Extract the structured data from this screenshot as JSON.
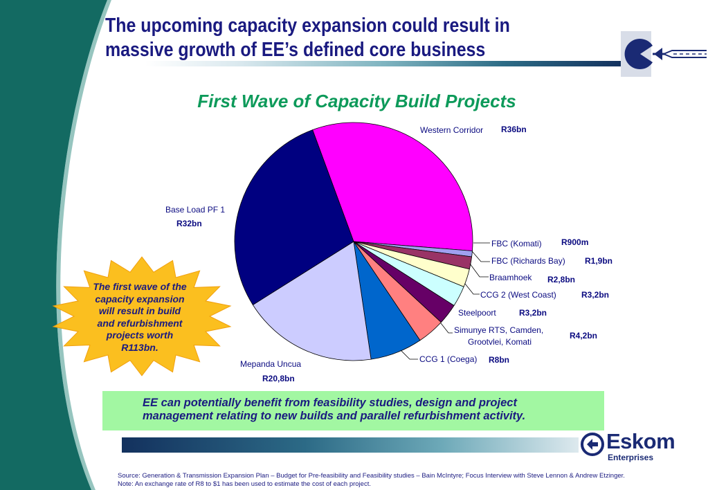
{
  "title_lines": [
    "The upcoming capacity expansion could result in",
    "massive growth of EE’s defined core business"
  ],
  "subtitle": "First Wave of Capacity Build Projects",
  "colors": {
    "title": "#1a1a80",
    "subtitle": "#0d9a5a",
    "green_box": "#a2f7a2",
    "burst": "#fbbf1f",
    "band": "#136a62"
  },
  "chart_data": {
    "type": "pie",
    "title": "First Wave of Capacity Build Projects",
    "unit": "R bn",
    "slices": [
      {
        "name": "Western Corridor",
        "value_label": "R36bn",
        "value": 36.0,
        "color": "#ff00ff"
      },
      {
        "name": "FBC (Komati)",
        "value_label": "R900m",
        "value": 0.9,
        "color": "#a0a0f0"
      },
      {
        "name": "FBC (Richards Bay)",
        "value_label": "R1,9bn",
        "value": 1.9,
        "color": "#993366"
      },
      {
        "name": "Braamhoek",
        "value_label": "R2,8bn",
        "value": 2.8,
        "color": "#ffffcc"
      },
      {
        "name": "CCG 2  (West Coast)",
        "value_label": "R3,2bn",
        "value": 3.2,
        "color": "#ccffff"
      },
      {
        "name": "Steelpoort",
        "value_label": "R3,2bn",
        "value": 3.2,
        "color": "#660066"
      },
      {
        "name": "Simunye RTS, Camden, Grootvlei, Komati",
        "name_lines": [
          "Simunye RTS, Camden,",
          "Grootvlei, Komati"
        ],
        "value_label": "R4,2bn",
        "value": 4.2,
        "color": "#ff8080"
      },
      {
        "name": "CCG 1 (Coega)",
        "value_label": "R8bn",
        "value": 8.0,
        "color": "#0066cc"
      },
      {
        "name": "Mepanda Uncua",
        "value_label": "R20,8bn",
        "value": 20.8,
        "color": "#ccccff"
      },
      {
        "name": "Base Load PF 1",
        "value_label": "R32bn",
        "value": 32.0,
        "color": "#000080"
      }
    ]
  },
  "burst_text_lines": [
    "The first wave of the",
    "capacity expansion",
    "will result in build",
    "and refurbishment",
    "projects worth",
    "R113bn."
  ],
  "benefit_lines": [
    "EE can potentially benefit from feasibility studies, design and project",
    "management relating to new builds and parallel refurbishment activity."
  ],
  "logo": {
    "name": "Eskom",
    "sub": "Enterprises"
  },
  "footnotes": {
    "source": "Source:  Generation & Transmission Expansion Plan – Budget for Pre-feasibility and Feasibility studies – Bain McIntyre; Focus Interview with Steve Lennon & Andrew Etzinger.",
    "note": "Note:  An exchange rate of R8 to $1 has been used to estimate the cost of each project."
  }
}
